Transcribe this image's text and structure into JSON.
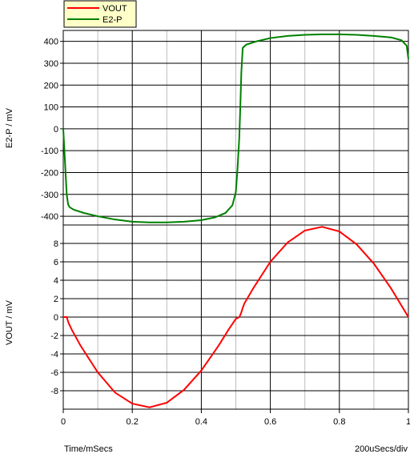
{
  "chart_data": [
    {
      "type": "line",
      "panel": "top",
      "ylabel": "E2-P / mV",
      "ylim": [
        -440,
        450
      ],
      "yticks": [
        -400,
        -300,
        -200,
        -100,
        0,
        100,
        200,
        300,
        400
      ],
      "xlim": [
        0,
        1
      ],
      "series": [
        {
          "name": "E2-P",
          "color": "#008000",
          "x": [
            0,
            0.002,
            0.006,
            0.01,
            0.014,
            0.018,
            0.03,
            0.06,
            0.1,
            0.15,
            0.2,
            0.25,
            0.3,
            0.35,
            0.4,
            0.44,
            0.47,
            0.49,
            0.5,
            0.505,
            0.51,
            0.513,
            0.516,
            0.52,
            0.53,
            0.56,
            0.6,
            0.65,
            0.7,
            0.75,
            0.8,
            0.85,
            0.9,
            0.95,
            0.98,
            0.995,
            1.0
          ],
          "y": [
            0,
            -60,
            -180,
            -300,
            -345,
            -358,
            -370,
            -385,
            -400,
            -415,
            -425,
            -428,
            -428,
            -425,
            -418,
            -405,
            -385,
            -350,
            -290,
            -180,
            -40,
            100,
            260,
            370,
            385,
            400,
            415,
            425,
            430,
            432,
            432,
            430,
            425,
            418,
            405,
            380,
            320
          ]
        }
      ]
    },
    {
      "type": "line",
      "panel": "bottom",
      "ylabel": "VOUT / mV",
      "xlabel": "Time/mSecs",
      "xlim": [
        0,
        1
      ],
      "ylim": [
        -10,
        10
      ],
      "yticks": [
        -8,
        -6,
        -4,
        -2,
        0,
        2,
        4,
        6,
        8
      ],
      "xticks": [
        0,
        0.2,
        0.4,
        0.6,
        0.8,
        1
      ],
      "xtick_labels": [
        "0",
        "0.2",
        "0.4",
        "0.6",
        "0.8",
        "1"
      ],
      "series": [
        {
          "name": "VOUT",
          "color": "#ff0000",
          "x": [
            0,
            0.01,
            0.015,
            0.025,
            0.05,
            0.1,
            0.15,
            0.2,
            0.25,
            0.3,
            0.35,
            0.4,
            0.45,
            0.48,
            0.5,
            0.51,
            0.515,
            0.52,
            0.525,
            0.55,
            0.6,
            0.65,
            0.7,
            0.75,
            0.8,
            0.85,
            0.9,
            0.95,
            1.0
          ],
          "y": [
            0,
            0,
            -0.6,
            -1.4,
            -3.1,
            -6.0,
            -8.2,
            -9.4,
            -9.8,
            -9.3,
            -7.9,
            -5.8,
            -3.1,
            -1.3,
            -0.2,
            0,
            0.4,
            1.0,
            1.5,
            3.1,
            6.0,
            8.1,
            9.4,
            9.8,
            9.3,
            7.9,
            5.8,
            3.1,
            0
          ]
        }
      ]
    }
  ],
  "legend": {
    "entries": [
      {
        "name": "VOUT",
        "color": "#ff0000"
      },
      {
        "name": "E2-P",
        "color": "#008000"
      }
    ],
    "placement": "top-left"
  },
  "footer": {
    "xlabel": "Time/mSecs",
    "scale": "200uSecs/div"
  }
}
